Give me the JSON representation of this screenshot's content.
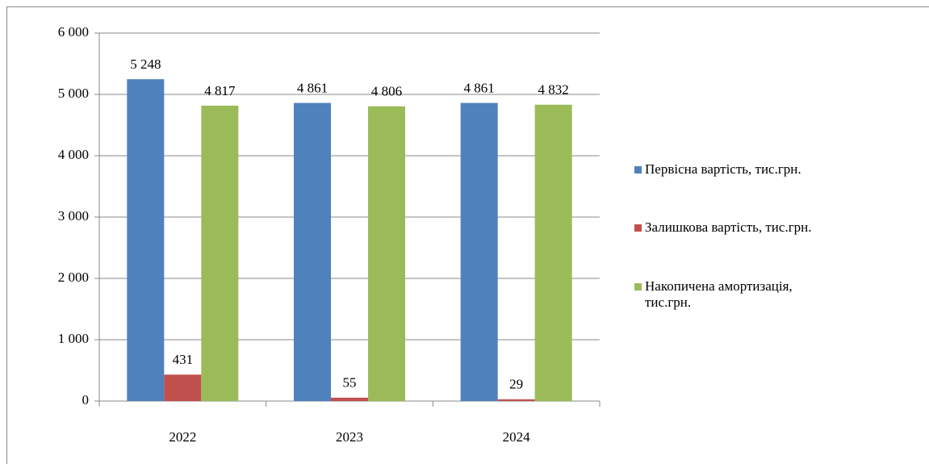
{
  "chart_data": {
    "type": "bar",
    "categories": [
      "2022",
      "2023",
      "2024"
    ],
    "series": [
      {
        "name": "Первісна вартість, тис.грн.",
        "color": "#4f81bd",
        "values": [
          5248,
          4861,
          4861
        ],
        "value_labels": [
          "5 248",
          "4 861",
          "4 861"
        ]
      },
      {
        "name": "Залишкова вартість, тис.грн.",
        "color": "#c0504d",
        "values": [
          431,
          55,
          29
        ],
        "value_labels": [
          "431",
          "55",
          "29"
        ]
      },
      {
        "name": "Накопичена амортизація, тис.грн.",
        "color": "#9bbb59",
        "values": [
          4817,
          4806,
          4832
        ],
        "value_labels": [
          "4 817",
          "4 806",
          "4 832"
        ]
      }
    ],
    "ylim": [
      0,
      6000
    ],
    "yticks": [
      0,
      {
        "value": 1000,
        "label": "1 000"
      },
      {
        "value": 2000,
        "label": "2 000"
      },
      {
        "value": 3000,
        "label": "3 000"
      },
      {
        "value": 4000,
        "label": "4 000"
      },
      {
        "value": 5000,
        "label": "5 000"
      },
      {
        "value": 6000,
        "label": "6 000"
      }
    ],
    "grid": true,
    "legend": "right"
  }
}
